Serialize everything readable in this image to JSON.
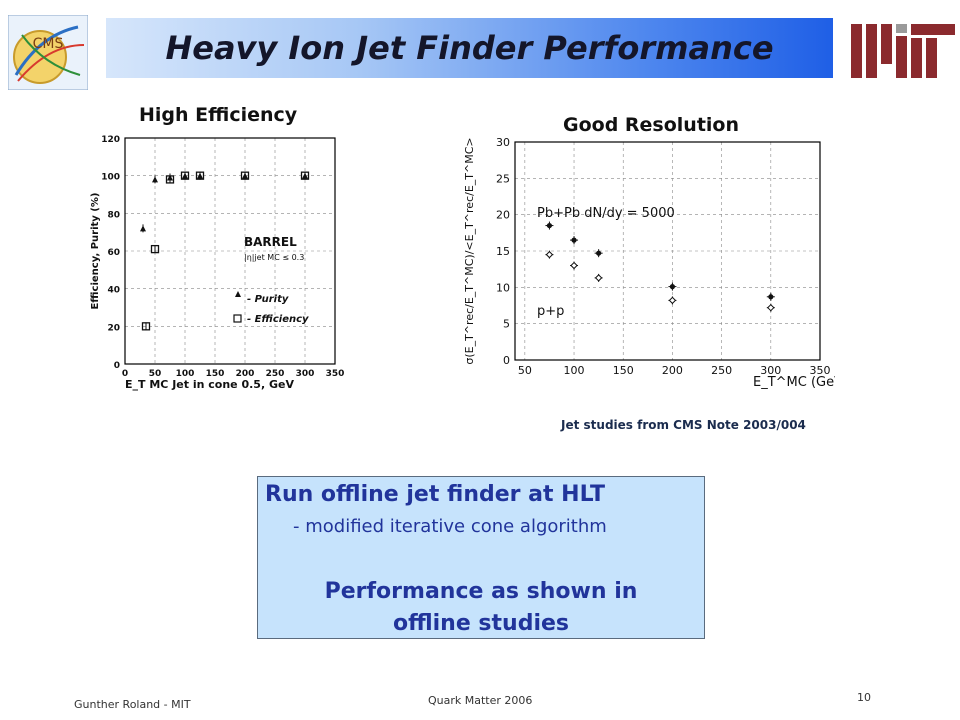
{
  "header": {
    "title": "Heavy Ion Jet Finder Performance",
    "cms_logo_text": "CMS",
    "banner_colors": [
      "#d6e6fb",
      "#1f5fe6"
    ],
    "mit_logo_color": "#8b2a2e"
  },
  "left_panel": {
    "title": "High Efficiency"
  },
  "right_panel": {
    "title": "Good Resolution"
  },
  "chart_data": [
    {
      "type": "scatter",
      "xlabel": "E_T MC Jet in cone 0.5, GeV",
      "ylabel": "Efficiency, Purity (%)",
      "xlim": [
        0,
        350
      ],
      "ylim": [
        0,
        120
      ],
      "xticks": [
        0,
        50,
        100,
        150,
        200,
        250,
        300,
        350
      ],
      "yticks": [
        0,
        20,
        40,
        60,
        80,
        100,
        120
      ],
      "grid": true,
      "region_label": "BARREL",
      "cut_label": "|η|jet MC ≤ 0.3",
      "legend_location": "lower-right",
      "series": [
        {
          "name": "- Purity",
          "marker": "triangle",
          "x": [
            30,
            50,
            75,
            100,
            125,
            200,
            300
          ],
          "y": [
            72,
            98,
            99,
            100,
            100,
            100,
            100
          ]
        },
        {
          "name": "- Efficiency",
          "marker": "open-square",
          "x": [
            35,
            50,
            75,
            100,
            125,
            200,
            300
          ],
          "y": [
            20,
            61,
            98,
            100,
            100,
            100,
            100
          ]
        }
      ]
    },
    {
      "type": "scatter",
      "xlabel": "E_T^MC (GeV)",
      "ylabel": "σ(E_T^rec/E_T^MC)/<E_T^rec/E_T^MC>",
      "xlim": [
        40,
        350
      ],
      "ylim": [
        0,
        30
      ],
      "xticks": [
        50,
        100,
        150,
        200,
        250,
        300,
        350
      ],
      "yticks": [
        0,
        5,
        10,
        15,
        20,
        25,
        30
      ],
      "grid": true,
      "series": [
        {
          "name": "Pb+Pb  dN/dy = 5000",
          "marker": "filled-circle",
          "x": [
            75,
            100,
            125,
            200,
            300
          ],
          "y": [
            18.5,
            16.5,
            14.7,
            10.1,
            8.7
          ]
        },
        {
          "name": "p+p",
          "marker": "open-diamond",
          "x": [
            75,
            100,
            125,
            200,
            300
          ],
          "y": [
            14.5,
            13.0,
            11.3,
            8.2,
            7.2
          ]
        }
      ]
    }
  ],
  "caption": "Jet studies from CMS Note 2003/004",
  "info_box": {
    "heading": "Run offline jet finder at HLT",
    "sub": "- modified iterative cone algorithm",
    "perf_line1": "Performance as shown in",
    "perf_line2": "offline studies",
    "bg_color": "#c6e3fc",
    "text_color": "#21349b"
  },
  "footer": {
    "left": "Gunther Roland - MIT",
    "center": "Quark Matter 2006",
    "page": "10"
  }
}
